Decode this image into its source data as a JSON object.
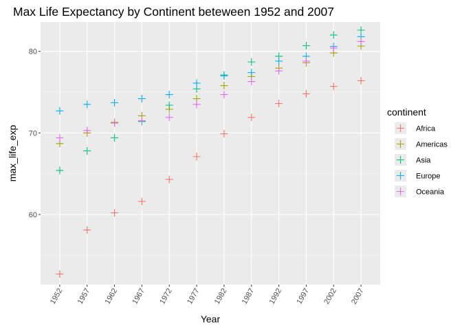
{
  "chart_data": {
    "type": "scatter",
    "title": "Max Life Expectancy by Continent beteween 1952 and 2007",
    "xlabel": "Year",
    "ylabel": "max_life_exp",
    "x": [
      "1952",
      "1957",
      "1962",
      "1967",
      "1972",
      "1977",
      "1982",
      "1987",
      "1992",
      "1997",
      "2002",
      "2007"
    ],
    "yticks": [
      60,
      70,
      80
    ],
    "ylim": [
      51.4,
      83.6
    ],
    "grid": true,
    "marker": "plus",
    "legend_title": "continent",
    "legend_position": "right",
    "series": [
      {
        "name": "Africa",
        "color": "#F8766D",
        "values": [
          52.7,
          58.1,
          60.2,
          61.6,
          64.3,
          67.1,
          69.9,
          71.9,
          73.6,
          74.8,
          75.7,
          76.4
        ]
      },
      {
        "name": "Americas",
        "color": "#A3A500",
        "values": [
          68.7,
          70.0,
          71.3,
          72.1,
          72.9,
          74.2,
          75.8,
          76.9,
          77.95,
          78.6,
          79.8,
          80.65
        ]
      },
      {
        "name": "Asia",
        "color": "#00BF7D",
        "values": [
          65.4,
          67.8,
          69.4,
          71.4,
          73.4,
          75.4,
          77.1,
          78.7,
          79.4,
          80.7,
          82.0,
          82.6
        ]
      },
      {
        "name": "Europe",
        "color": "#00B0F6",
        "values": [
          72.7,
          73.5,
          73.7,
          74.2,
          74.7,
          76.1,
          77.0,
          77.4,
          78.8,
          79.4,
          80.6,
          81.8
        ]
      },
      {
        "name": "Oceania",
        "color": "#E76BF3",
        "values": [
          69.4,
          70.3,
          71.2,
          71.5,
          71.9,
          73.5,
          74.7,
          76.3,
          77.6,
          78.8,
          80.4,
          81.2
        ]
      }
    ]
  }
}
